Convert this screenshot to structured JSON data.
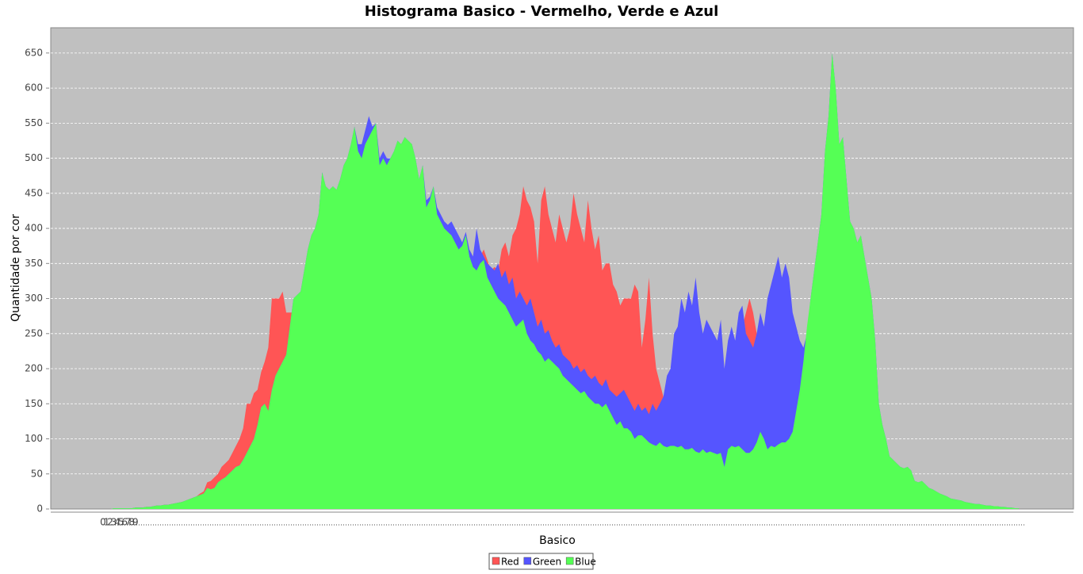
{
  "chart_data": {
    "type": "area",
    "title": "Histograma Basico - Vermelho, Verde e Azul",
    "x_label": "Basico",
    "y_label": "Quantidade por cor",
    "ylim": [
      0,
      686
    ],
    "yticks": [
      0,
      50,
      100,
      150,
      200,
      250,
      300,
      350,
      400,
      450,
      500,
      550,
      600,
      650
    ],
    "grid": true,
    "legend": "bottom",
    "categories": [
      "0",
      "1",
      "2",
      "3",
      "4",
      "5",
      "6",
      "7",
      "8",
      "9",
      null,
      null,
      null,
      null,
      null,
      null,
      null,
      null,
      null,
      null,
      null,
      null,
      null,
      null,
      null,
      null,
      null,
      null,
      null,
      null,
      null,
      null,
      null,
      null,
      null,
      null,
      null,
      null,
      null,
      null,
      null,
      null,
      null,
      null,
      null,
      null,
      null,
      null,
      null,
      null,
      null,
      null,
      null,
      null,
      null,
      null,
      null,
      null,
      null,
      null,
      null,
      null,
      null,
      null,
      null,
      null,
      null,
      null,
      null,
      null,
      null,
      null,
      null,
      null,
      null,
      null,
      null,
      null,
      null,
      null,
      null,
      null,
      null,
      null,
      null,
      null,
      null,
      null,
      null,
      null,
      null,
      null,
      null,
      null,
      null,
      null,
      null,
      null,
      null,
      null,
      null,
      null,
      null,
      null,
      null,
      null,
      null,
      null,
      null,
      null,
      null,
      null,
      null,
      null,
      null,
      null,
      null,
      null,
      null,
      null,
      null,
      null,
      null,
      null,
      null,
      null,
      null,
      null,
      null,
      null,
      null,
      null,
      null,
      null,
      null,
      null,
      null,
      null,
      null,
      null,
      null,
      null,
      null,
      null,
      null,
      null,
      null,
      null,
      null,
      null,
      null,
      null,
      null,
      null,
      null,
      null,
      null,
      null,
      null,
      null,
      null,
      null,
      null,
      null,
      null,
      null,
      null,
      null,
      null,
      null,
      null,
      null,
      null,
      null,
      null,
      null,
      null,
      null,
      null,
      null,
      null,
      null,
      null,
      null,
      null,
      null,
      null,
      null,
      null,
      null,
      null,
      null,
      null,
      null,
      null,
      null,
      null,
      null,
      null,
      null,
      null,
      null,
      null,
      null,
      null,
      null,
      null,
      null,
      null,
      null,
      null,
      null,
      null,
      null,
      null,
      null,
      null,
      null,
      null,
      null,
      null,
      null,
      null,
      null,
      null,
      null,
      null,
      null,
      null,
      null,
      null,
      null,
      null,
      null,
      null,
      null,
      null,
      null,
      null,
      null,
      null,
      null,
      null,
      null,
      null,
      null,
      null,
      null,
      null,
      null,
      null,
      null,
      null,
      null,
      null,
      null
    ],
    "series": [
      {
        "name": "Red",
        "color": "#ff5555",
        "values": [
          0,
          0,
          0,
          1,
          1,
          1,
          1,
          1,
          1,
          2,
          2,
          2,
          3,
          3,
          4,
          5,
          5,
          6,
          6,
          7,
          8,
          9,
          10,
          12,
          14,
          16,
          18,
          22,
          25,
          38,
          40,
          45,
          50,
          60,
          65,
          70,
          80,
          90,
          100,
          115,
          150,
          150,
          165,
          170,
          195,
          210,
          230,
          300,
          300,
          300,
          310,
          280,
          280,
          280,
          290,
          300,
          320,
          340,
          350,
          360,
          380,
          400,
          420,
          410,
          420,
          430,
          440,
          460,
          470,
          480,
          500,
          490,
          480,
          500,
          510,
          520,
          520,
          480,
          490,
          480,
          490,
          495,
          500,
          500,
          510,
          500,
          490,
          480,
          450,
          460,
          410,
          420,
          440,
          400,
          390,
          380,
          380,
          370,
          360,
          360,
          360,
          370,
          350,
          340,
          340,
          360,
          370,
          355,
          340,
          345,
          340,
          370,
          380,
          360,
          390,
          400,
          420,
          460,
          440,
          430,
          410,
          350,
          440,
          460,
          420,
          400,
          380,
          420,
          400,
          380,
          400,
          450,
          420,
          400,
          380,
          440,
          400,
          370,
          390,
          340,
          350,
          350,
          320,
          310,
          290,
          300,
          300,
          300,
          320,
          310,
          230,
          270,
          330,
          250,
          200,
          180,
          160,
          150,
          140,
          130,
          120,
          110,
          100,
          100,
          100,
          95,
          95,
          90,
          90,
          95,
          90,
          90,
          95,
          80,
          180,
          230,
          230,
          180,
          260,
          280,
          300,
          280,
          250,
          270,
          250,
          200,
          150,
          130,
          120,
          115,
          110,
          105,
          100,
          115,
          135,
          170,
          210,
          240,
          270,
          300,
          340,
          410,
          450,
          520,
          480,
          420,
          420,
          380,
          330,
          320,
          300,
          310,
          290,
          260,
          240,
          190,
          120,
          95,
          80,
          60,
          55,
          52,
          48,
          46,
          48,
          44,
          32,
          30,
          32,
          28,
          24,
          22,
          20,
          18,
          16,
          14,
          12,
          11,
          10,
          9,
          8,
          7,
          6,
          6,
          5,
          5,
          4,
          4,
          3,
          3,
          2,
          2,
          2,
          1,
          1,
          1
        ]
      },
      {
        "name": "Green",
        "color": "#5555ff",
        "values": [
          0,
          0,
          0,
          1,
          1,
          1,
          1,
          1,
          1,
          2,
          2,
          2,
          3,
          3,
          4,
          5,
          5,
          6,
          6,
          7,
          8,
          9,
          10,
          12,
          14,
          16,
          18,
          20,
          22,
          30,
          28,
          30,
          38,
          42,
          45,
          50,
          55,
          60,
          62,
          70,
          80,
          90,
          100,
          120,
          145,
          150,
          140,
          170,
          190,
          200,
          210,
          220,
          260,
          300,
          305,
          310,
          340,
          370,
          390,
          400,
          420,
          480,
          460,
          455,
          460,
          455,
          470,
          490,
          500,
          520,
          545,
          520,
          520,
          540,
          560,
          545,
          550,
          500,
          510,
          500,
          500,
          510,
          525,
          520,
          530,
          525,
          520,
          500,
          470,
          490,
          440,
          445,
          460,
          430,
          420,
          410,
          405,
          410,
          400,
          390,
          380,
          395,
          370,
          360,
          400,
          370,
          360,
          350,
          345,
          340,
          350,
          330,
          340,
          320,
          330,
          300,
          310,
          300,
          290,
          300,
          280,
          260,
          270,
          250,
          255,
          240,
          230,
          235,
          220,
          215,
          210,
          200,
          205,
          195,
          200,
          190,
          185,
          190,
          180,
          175,
          185,
          170,
          165,
          160,
          165,
          170,
          160,
          150,
          140,
          150,
          140,
          145,
          135,
          150,
          140,
          150,
          160,
          190,
          200,
          250,
          260,
          300,
          280,
          310,
          290,
          330,
          280,
          250,
          270,
          260,
          250,
          240,
          270,
          200,
          240,
          260,
          240,
          280,
          290,
          250,
          240,
          230,
          250,
          280,
          260,
          300,
          320,
          340,
          360,
          330,
          350,
          330,
          280,
          260,
          240,
          230,
          250,
          300,
          340,
          380,
          420,
          510,
          560,
          650,
          600,
          520,
          530,
          470,
          410,
          400,
          380,
          390,
          360,
          330,
          300,
          240,
          150,
          120,
          100,
          75,
          70,
          65,
          60,
          58,
          60,
          55,
          40,
          38,
          40,
          35,
          30,
          28,
          25,
          22,
          20,
          18,
          15,
          14,
          13,
          12,
          10,
          9,
          8,
          7,
          7,
          6,
          5,
          5,
          4,
          4,
          3,
          3,
          2,
          2,
          1,
          1
        ]
      },
      {
        "name": "Blue",
        "color": "#55ff55",
        "values": [
          0,
          0,
          0,
          1,
          1,
          1,
          1,
          1,
          1,
          2,
          2,
          2,
          3,
          3,
          4,
          5,
          5,
          6,
          6,
          7,
          8,
          9,
          10,
          12,
          14,
          16,
          18,
          20,
          22,
          30,
          28,
          30,
          38,
          42,
          45,
          50,
          55,
          60,
          62,
          70,
          80,
          90,
          100,
          120,
          145,
          150,
          140,
          170,
          190,
          200,
          210,
          220,
          260,
          300,
          305,
          310,
          340,
          370,
          390,
          400,
          420,
          480,
          460,
          455,
          460,
          455,
          470,
          490,
          500,
          520,
          545,
          510,
          500,
          520,
          530,
          540,
          550,
          490,
          500,
          490,
          500,
          510,
          525,
          520,
          530,
          525,
          520,
          500,
          470,
          490,
          430,
          440,
          460,
          420,
          410,
          400,
          395,
          390,
          380,
          370,
          375,
          390,
          360,
          345,
          340,
          350,
          355,
          330,
          320,
          310,
          300,
          295,
          290,
          280,
          270,
          260,
          265,
          270,
          250,
          240,
          235,
          225,
          220,
          210,
          215,
          210,
          205,
          200,
          190,
          185,
          180,
          175,
          170,
          165,
          168,
          160,
          155,
          150,
          150,
          145,
          150,
          140,
          130,
          120,
          125,
          115,
          115,
          110,
          100,
          105,
          105,
          100,
          95,
          92,
          90,
          95,
          90,
          88,
          90,
          90,
          88,
          90,
          85,
          85,
          87,
          82,
          80,
          85,
          80,
          82,
          80,
          78,
          80,
          60,
          85,
          90,
          88,
          90,
          85,
          80,
          80,
          85,
          95,
          110,
          100,
          85,
          90,
          88,
          92,
          95,
          95,
          100,
          110,
          140,
          170,
          210,
          260,
          300,
          340,
          380,
          420,
          510,
          560,
          650,
          600,
          520,
          530,
          470,
          410,
          400,
          380,
          390,
          360,
          330,
          300,
          240,
          150,
          120,
          100,
          75,
          70,
          65,
          60,
          58,
          60,
          55,
          40,
          38,
          40,
          35,
          30,
          28,
          25,
          22,
          20,
          18,
          15,
          14,
          13,
          12,
          10,
          9,
          8,
          7,
          7,
          6,
          5,
          5,
          4,
          4,
          3,
          3,
          2,
          2,
          1,
          1
        ]
      }
    ]
  }
}
